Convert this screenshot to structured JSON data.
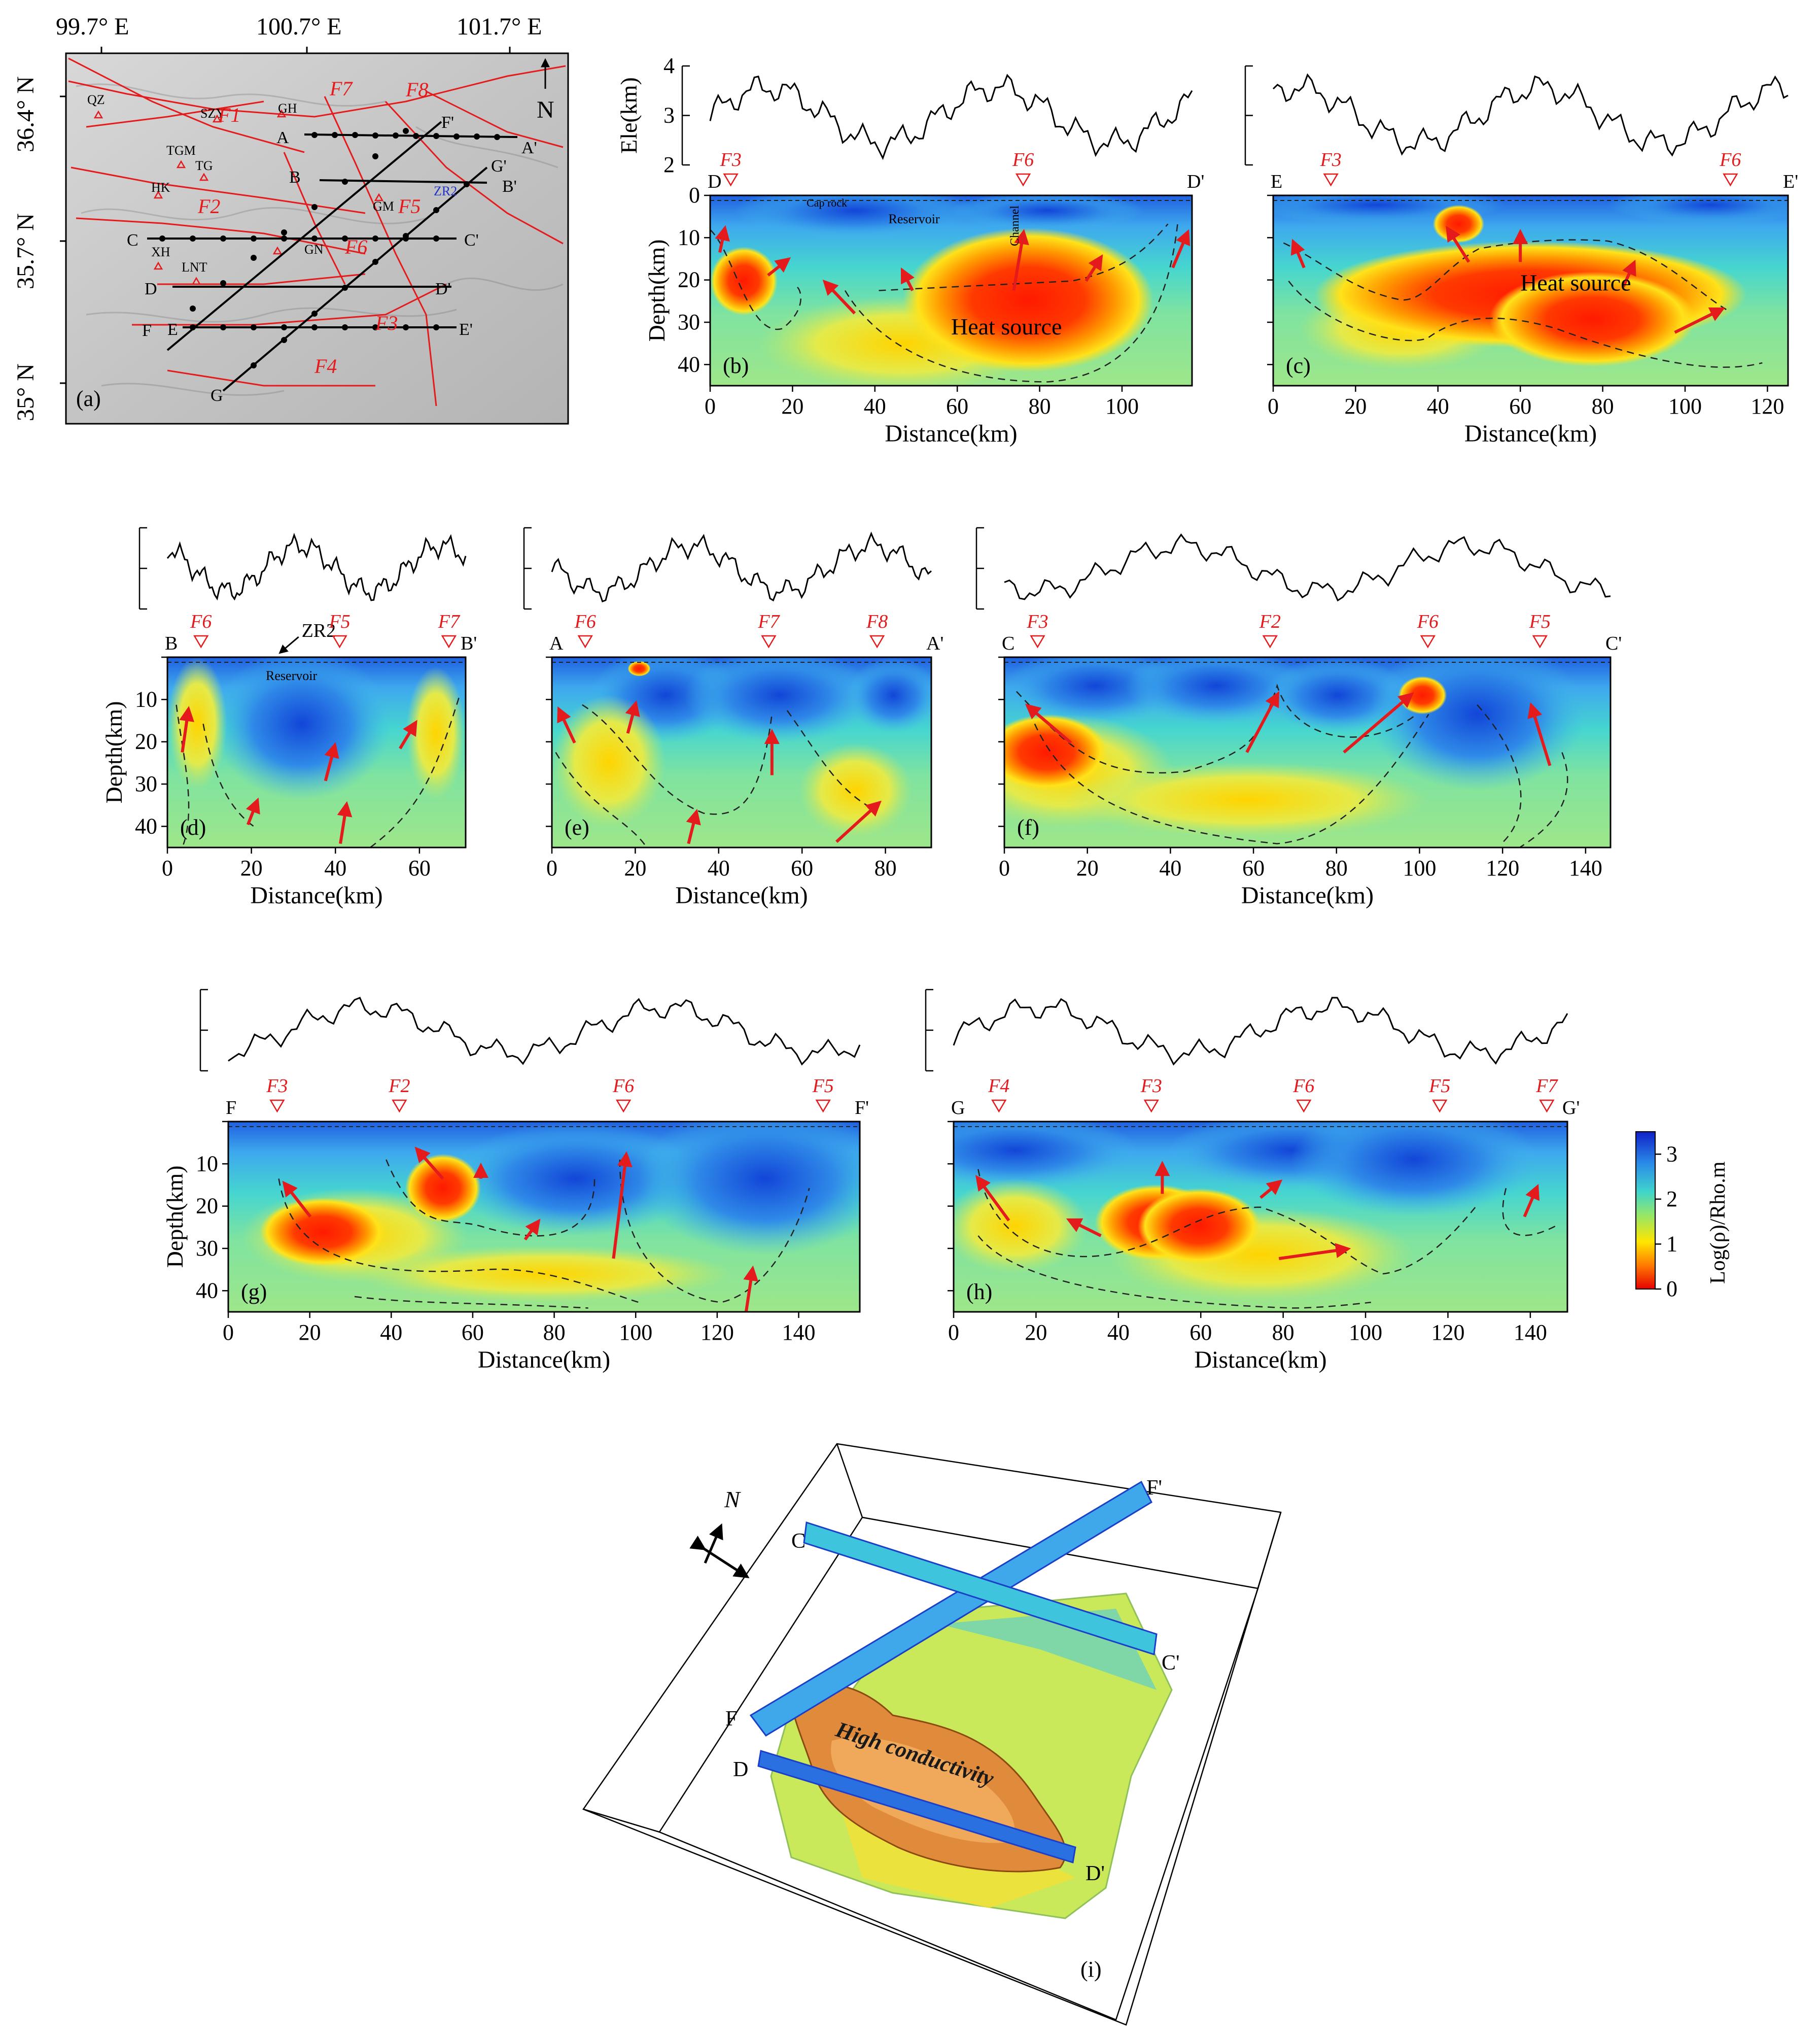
{
  "map": {
    "panel_letter": "(a)",
    "lon_labels": [
      "99.7° E",
      "100.7° E",
      "101.7° E"
    ],
    "lat_labels": [
      "36.4° N",
      "35.7° N",
      "35° N"
    ],
    "north_label": "N",
    "faults": [
      "F1",
      "F2",
      "F3",
      "F4",
      "F5",
      "F6",
      "F7",
      "F8"
    ],
    "stations": [
      "QZ",
      "SZY",
      "GH",
      "TGM",
      "TG",
      "HK",
      "XH",
      "LNT",
      "GN",
      "GM",
      "ZR2"
    ],
    "profiles": [
      {
        "start": "A",
        "end": "A'"
      },
      {
        "start": "B",
        "end": "B'"
      },
      {
        "start": "C",
        "end": "C'"
      },
      {
        "start": "D",
        "end": "D'"
      },
      {
        "start": "E",
        "end": "E'"
      },
      {
        "start": "F",
        "end": "F'"
      },
      {
        "start": "G",
        "end": "G'"
      }
    ]
  },
  "common": {
    "xlabel": "Distance(km)",
    "ylabel": "Depth(km)",
    "elev_label": "Ele(km)",
    "depth_ticks": [
      0,
      10,
      20,
      30,
      40
    ],
    "elev_ticks": [
      2,
      3,
      4
    ]
  },
  "sections": [
    {
      "id": "b",
      "letter": "(b)",
      "start": "D",
      "end": "D'",
      "xmax": 117,
      "ticks": [
        0,
        20,
        40,
        60,
        80,
        100
      ],
      "faults": [
        {
          "name": "F3",
          "km": 5
        },
        {
          "name": "F6",
          "km": 76
        }
      ],
      "annotations": [
        "Heat source",
        "Cap rock",
        "Reservoir",
        "Channel"
      ]
    },
    {
      "id": "c",
      "letter": "(c)",
      "start": "E",
      "end": "E'",
      "xmax": 125,
      "ticks": [
        0,
        20,
        40,
        60,
        80,
        100,
        120
      ],
      "faults": [
        {
          "name": "F3",
          "km": 14
        },
        {
          "name": "F6",
          "km": 111
        }
      ],
      "annotations": [
        "Heat source"
      ]
    },
    {
      "id": "d",
      "letter": "(d)",
      "start": "B",
      "end": "B'",
      "xmax": 71,
      "ticks": [
        0,
        20,
        40,
        60
      ],
      "faults": [
        {
          "name": "F6",
          "km": 8
        },
        {
          "name": "F5",
          "km": 41
        },
        {
          "name": "F7",
          "km": 67
        }
      ],
      "annotations": [
        "Reservoir",
        "ZR2"
      ]
    },
    {
      "id": "e",
      "letter": "(e)",
      "start": "A",
      "end": "A'",
      "xmax": 91,
      "ticks": [
        0,
        20,
        40,
        60,
        80
      ],
      "faults": [
        {
          "name": "F6",
          "km": 8
        },
        {
          "name": "F7",
          "km": 52
        },
        {
          "name": "F8",
          "km": 78
        }
      ],
      "annotations": []
    },
    {
      "id": "f",
      "letter": "(f)",
      "start": "C",
      "end": "C'",
      "xmax": 146,
      "ticks": [
        0,
        20,
        40,
        60,
        80,
        100,
        120,
        140
      ],
      "faults": [
        {
          "name": "F3",
          "km": 8
        },
        {
          "name": "F2",
          "km": 64
        },
        {
          "name": "F6",
          "km": 102
        },
        {
          "name": "F5",
          "km": 129
        }
      ],
      "annotations": []
    },
    {
      "id": "g",
      "letter": "(g)",
      "start": "F",
      "end": "F'",
      "xmax": 155,
      "ticks": [
        0,
        20,
        40,
        60,
        80,
        100,
        120,
        140
      ],
      "faults": [
        {
          "name": "F3",
          "km": 12
        },
        {
          "name": "F2",
          "km": 42
        },
        {
          "name": "F6",
          "km": 97
        },
        {
          "name": "F5",
          "km": 146
        }
      ],
      "annotations": []
    },
    {
      "id": "h",
      "letter": "(h)",
      "start": "G",
      "end": "G'",
      "xmax": 149,
      "ticks": [
        0,
        20,
        40,
        60,
        80,
        100,
        120,
        140
      ],
      "faults": [
        {
          "name": "F4",
          "km": 11
        },
        {
          "name": "F3",
          "km": 48
        },
        {
          "name": "F6",
          "km": 85
        },
        {
          "name": "F5",
          "km": 118
        },
        {
          "name": "F7",
          "km": 144
        }
      ],
      "annotations": []
    }
  ],
  "colorbar": {
    "label": "Log(ρ)/Rho.m",
    "ticks": [
      0,
      1,
      2,
      3
    ],
    "min": 0,
    "max": 3.5
  },
  "model3d": {
    "letter": "(i)",
    "north_label": "N",
    "annotation": "High conductivity",
    "labels": [
      "C",
      "C'",
      "F",
      "F'",
      "D",
      "D'"
    ]
  }
}
